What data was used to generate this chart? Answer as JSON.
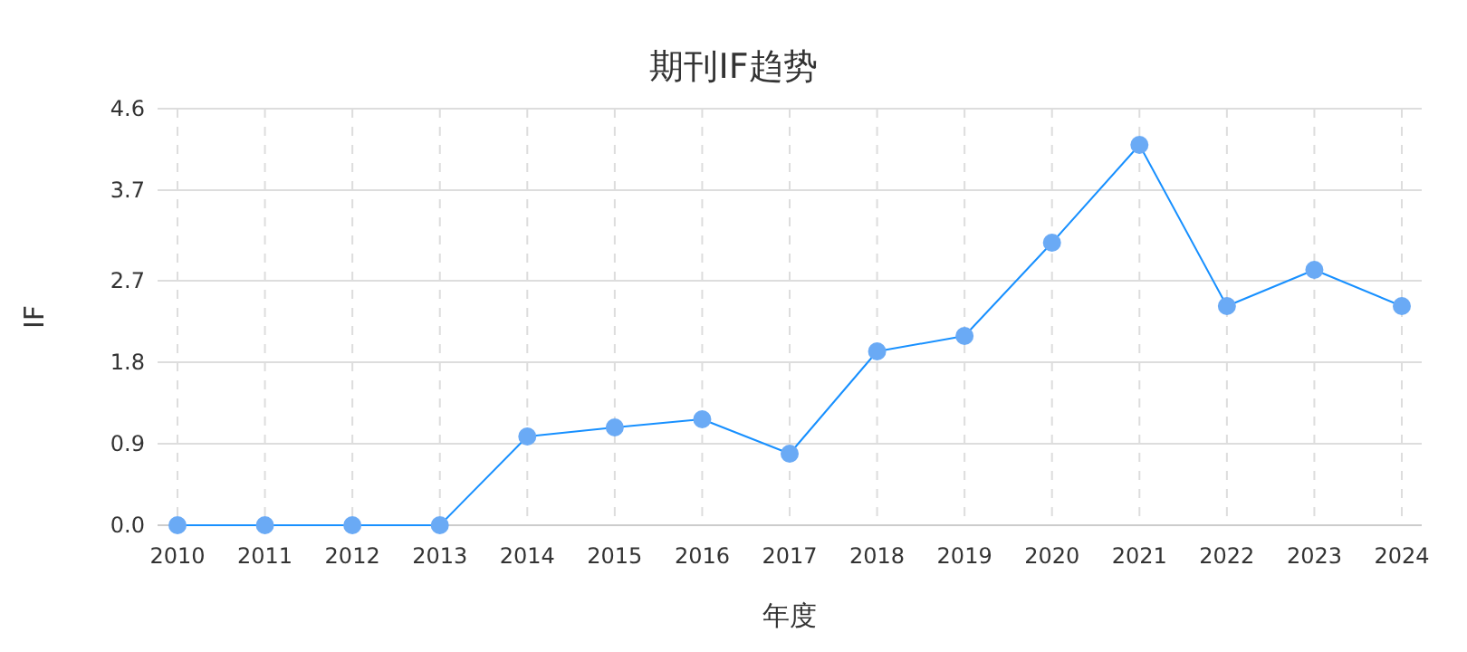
{
  "chart_data": {
    "type": "line",
    "title": "期刊IF趋势",
    "xlabel": "年度",
    "ylabel": "IF",
    "categories": [
      "2010",
      "2011",
      "2012",
      "2013",
      "2014",
      "2015",
      "2016",
      "2017",
      "2018",
      "2019",
      "2020",
      "2021",
      "2022",
      "2023",
      "2024"
    ],
    "series": [
      {
        "color": "#1890ff",
        "values": [
          0,
          0,
          0,
          0,
          0.98,
          1.08,
          1.17,
          0.79,
          1.92,
          2.09,
          3.12,
          4.2,
          2.42,
          2.82,
          2.42
        ]
      }
    ],
    "ylim": [
      0,
      4.6
    ],
    "yticks": [
      {
        "value": 0,
        "label": "0.0"
      },
      0.9,
      1.8,
      2.7,
      3.7,
      4.6
    ],
    "grid": true,
    "marker": "circle",
    "line_style": "solid"
  }
}
